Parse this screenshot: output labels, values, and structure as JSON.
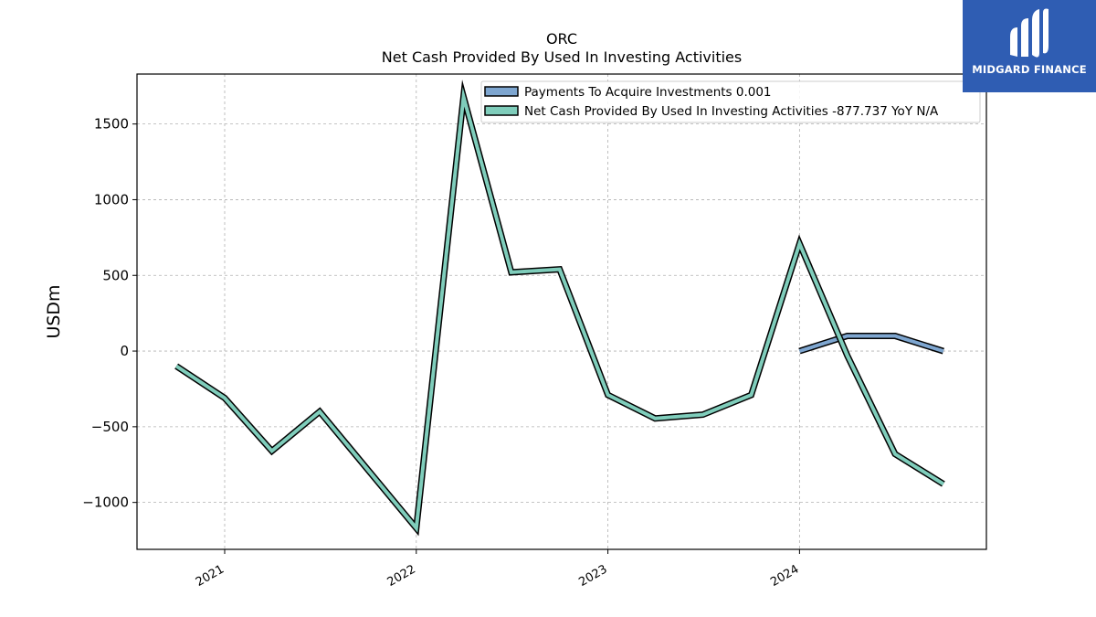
{
  "brand": {
    "logo_text": "MIDGARD FINANCE",
    "background_color": "#2f5db3"
  },
  "chart_data": {
    "type": "line",
    "title": "ORC",
    "subtitle": "Net Cash Provided By Used In Investing Activities",
    "xlabel": "",
    "ylabel": "USDm",
    "ylim": [
      -1310,
      1830
    ],
    "xlim": [
      "2020-07-18",
      "2024-12-22"
    ],
    "yticks": [
      -1000,
      -500,
      0,
      500,
      1000,
      1500
    ],
    "ytick_labels": [
      "−1000",
      "−500",
      "0",
      "500",
      "1000",
      "1500"
    ],
    "xticks": [
      "2021-01-01",
      "2022-01-01",
      "2023-01-01",
      "2024-01-01"
    ],
    "xtick_labels": [
      "2021",
      "2022",
      "2023",
      "2024"
    ],
    "grid": true,
    "legend_position": "top-right",
    "series": [
      {
        "name": "Payments To Acquire Investments",
        "legend_label": "Payments To Acquire Investments  0.001",
        "color": "#7ea6d0",
        "x": [
          "2024-01-01",
          "2024-04-01",
          "2024-07-01",
          "2024-10-01"
        ],
        "values": [
          0,
          100,
          100,
          0
        ]
      },
      {
        "name": "Net Cash Provided By Used In Investing Activities",
        "legend_label": "Net Cash Provided By Used In Investing Activities  -877.737 YoY N/A",
        "color": "#7fcdbb",
        "x": [
          "2020-10-01",
          "2021-01-01",
          "2021-04-01",
          "2021-07-01",
          "2022-01-01",
          "2022-04-01",
          "2022-07-01",
          "2022-10-01",
          "2023-01-01",
          "2023-04-01",
          "2023-07-01",
          "2023-10-01",
          "2024-01-01",
          "2024-04-01",
          "2024-07-01",
          "2024-10-01"
        ],
        "values": [
          -100,
          -310,
          -660,
          -400,
          -1170,
          1680,
          520,
          540,
          -290,
          -445,
          -420,
          -290,
          710,
          -30,
          -680,
          -878
        ]
      }
    ]
  }
}
